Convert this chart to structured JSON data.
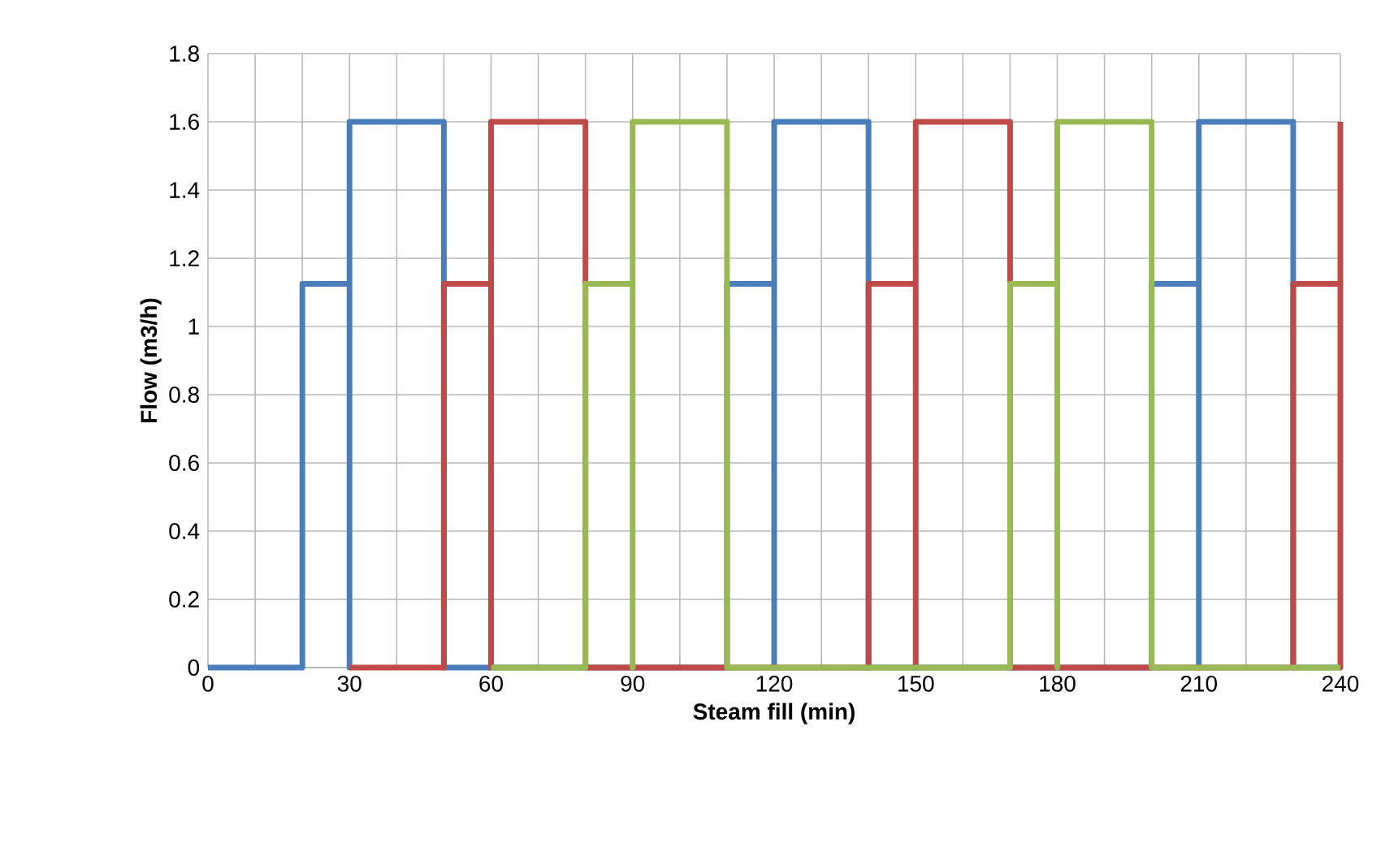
{
  "chart_data": {
    "type": "line",
    "xlabel": "Steam fill (min)",
    "ylabel": "Flow (m3/h)",
    "xlim": [
      0,
      240
    ],
    "ylim": [
      0,
      1.8
    ],
    "xticks": [
      0,
      {
        "value": 10,
        "label": null
      },
      {
        "value": 20,
        "label": null
      },
      30,
      {
        "value": 40,
        "label": null
      },
      {
        "value": 50,
        "label": null
      },
      60,
      {
        "value": 70,
        "label": null
      },
      {
        "value": 80,
        "label": null
      },
      90,
      {
        "value": 100,
        "label": null
      },
      {
        "value": 110,
        "label": null
      },
      120,
      {
        "value": 130,
        "label": null
      },
      {
        "value": 140,
        "label": null
      },
      150,
      {
        "value": 160,
        "label": null
      },
      {
        "value": 170,
        "label": null
      },
      180,
      {
        "value": 190,
        "label": null
      },
      {
        "value": 200,
        "label": null
      },
      210,
      {
        "value": 220,
        "label": null
      },
      {
        "value": 230,
        "label": null
      },
      240
    ],
    "yticks": [
      0,
      0.2,
      0.4,
      0.6,
      0.8,
      1,
      1.2,
      1.4,
      1.6,
      1.8
    ],
    "grid": true,
    "marker": "none",
    "line_style": "solid",
    "series": [
      {
        "color": "#4a7ebb",
        "x": [
          0,
          20,
          20,
          30,
          30,
          30,
          50,
          50,
          110,
          110,
          120,
          120,
          120,
          140,
          140,
          200,
          200,
          210,
          210,
          210,
          230,
          230,
          240
        ],
        "values": [
          0,
          0,
          1.125,
          1.125,
          0,
          1.6,
          1.6,
          0,
          0,
          1.125,
          1.125,
          0,
          1.6,
          1.6,
          0,
          0,
          1.125,
          1.125,
          0,
          1.6,
          1.6,
          0,
          0
        ]
      },
      {
        "color": "#be4b48",
        "x": [
          30,
          50,
          50,
          60,
          60,
          60,
          80,
          80,
          140,
          140,
          150,
          150,
          150,
          170,
          170,
          230,
          230,
          240,
          240,
          240
        ],
        "values": [
          0,
          0,
          1.125,
          1.125,
          0,
          1.6,
          1.6,
          0,
          0,
          1.125,
          1.125,
          0,
          1.6,
          1.6,
          0,
          0,
          1.125,
          1.125,
          0,
          1.6
        ]
      },
      {
        "color": "#98b954",
        "x": [
          60,
          80,
          80,
          90,
          90,
          90,
          110,
          110,
          170,
          170,
          180,
          180,
          180,
          200,
          200,
          240
        ],
        "values": [
          0,
          0,
          1.125,
          1.125,
          0,
          1.6,
          1.6,
          0,
          0,
          1.125,
          1.125,
          0,
          1.6,
          1.6,
          0,
          0
        ]
      }
    ]
  }
}
